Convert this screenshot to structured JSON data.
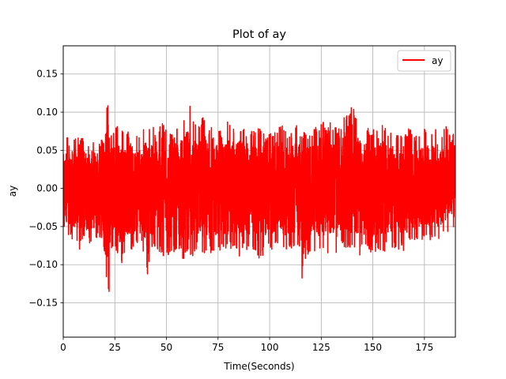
{
  "chart_data": {
    "type": "line",
    "title": "Plot of ay",
    "xlabel": "Time(Seconds)",
    "ylabel": "ay",
    "xlim": [
      0,
      190
    ],
    "ylim": [
      -0.195,
      0.187
    ],
    "xticks": [
      0,
      25,
      50,
      75,
      100,
      125,
      150,
      175
    ],
    "yticks": [
      -0.15,
      -0.1,
      -0.05,
      0.0,
      0.05,
      0.1,
      0.15
    ],
    "xtick_labels": [
      "0",
      "25",
      "50",
      "75",
      "100",
      "125",
      "150",
      "175"
    ],
    "ytick_labels": [
      "−0.15",
      "−0.10",
      "−0.05",
      "0.00",
      "0.05",
      "0.10",
      "0.15"
    ],
    "grid": true,
    "legend_position": "top-right",
    "series": [
      {
        "name": "ay",
        "color": "#ff0000",
        "envelope": {
          "x": [
            0,
            1,
            2,
            3,
            5,
            8,
            10,
            12,
            15,
            18,
            20,
            21,
            21.5,
            22,
            23,
            25,
            28,
            30,
            33,
            35,
            38,
            40,
            41,
            43,
            45,
            48,
            50,
            53,
            55,
            58,
            60,
            61,
            63,
            65,
            68,
            70,
            73,
            75,
            78,
            80,
            83,
            85,
            88,
            90,
            93,
            95,
            98,
            100,
            103,
            105,
            108,
            110,
            113,
            115,
            116,
            118,
            120,
            123,
            125,
            128,
            130,
            133,
            135,
            138,
            140,
            143,
            145,
            148,
            150,
            153,
            155,
            158,
            160,
            163,
            165,
            168,
            170,
            173,
            175,
            178,
            180,
            183,
            185,
            188,
            190
          ],
          "upper": [
            0.06,
            0.065,
            0.072,
            0.06,
            0.07,
            0.065,
            0.07,
            0.06,
            0.068,
            0.062,
            0.07,
            0.168,
            0.12,
            0.08,
            0.07,
            0.08,
            0.085,
            0.07,
            0.08,
            0.075,
            0.08,
            0.08,
            0.075,
            0.085,
            0.07,
            0.09,
            0.08,
            0.075,
            0.08,
            0.09,
            0.1,
            0.115,
            0.09,
            0.08,
            0.1,
            0.08,
            0.09,
            0.075,
            0.08,
            0.09,
            0.08,
            0.085,
            0.08,
            0.078,
            0.08,
            0.08,
            0.07,
            0.075,
            0.08,
            0.085,
            0.08,
            0.07,
            0.09,
            0.072,
            0.078,
            0.07,
            0.08,
            0.08,
            0.09,
            0.08,
            0.09,
            0.08,
            0.113,
            0.09,
            0.115,
            0.09,
            0.078,
            0.08,
            0.078,
            0.075,
            0.085,
            0.07,
            0.08,
            0.072,
            0.075,
            0.08,
            0.07,
            0.072,
            0.08,
            0.072,
            0.08,
            0.072,
            0.085,
            0.065,
            0.08
          ],
          "lower": [
            -0.05,
            -0.058,
            -0.06,
            -0.062,
            -0.07,
            -0.08,
            -0.07,
            -0.075,
            -0.07,
            -0.065,
            -0.085,
            -0.178,
            -0.1,
            -0.152,
            -0.08,
            -0.08,
            -0.11,
            -0.08,
            -0.085,
            -0.075,
            -0.08,
            -0.09,
            -0.123,
            -0.085,
            -0.08,
            -0.09,
            -0.09,
            -0.085,
            -0.08,
            -0.095,
            -0.085,
            -0.09,
            -0.09,
            -0.08,
            -0.085,
            -0.09,
            -0.085,
            -0.08,
            -0.085,
            -0.08,
            -0.08,
            -0.09,
            -0.08,
            -0.085,
            -0.08,
            -0.1,
            -0.085,
            -0.08,
            -0.08,
            -0.075,
            -0.085,
            -0.08,
            -0.085,
            -0.08,
            -0.137,
            -0.09,
            -0.08,
            -0.085,
            -0.08,
            -0.085,
            -0.08,
            -0.09,
            -0.075,
            -0.08,
            -0.085,
            -0.09,
            -0.085,
            -0.08,
            -0.088,
            -0.08,
            -0.085,
            -0.075,
            -0.08,
            -0.08,
            -0.085,
            -0.07,
            -0.075,
            -0.07,
            -0.065,
            -0.068,
            -0.07,
            -0.065,
            -0.06,
            -0.055,
            -0.05
          ]
        }
      }
    ]
  }
}
